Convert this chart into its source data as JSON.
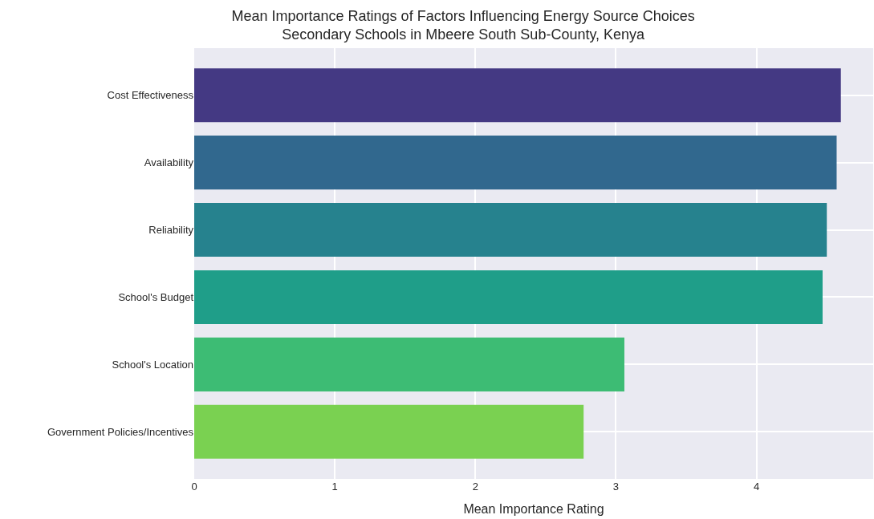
{
  "chart_data": {
    "type": "bar",
    "orientation": "horizontal",
    "title": "Mean Importance Ratings of Factors Influencing Energy Source Choices\nSecondary Schools in Mbeere South Sub-County, Kenya",
    "xlabel": "Mean Importance Rating",
    "categories": [
      "Cost Effectiveness",
      "Availability",
      "Reliability",
      "School's Budget",
      "School's Location",
      "Government Policies/Incentives"
    ],
    "values": [
      4.6,
      4.57,
      4.5,
      4.47,
      3.06,
      2.77
    ],
    "colors": [
      "#443983",
      "#31688e",
      "#26828e",
      "#1f9e89",
      "#3dbc74",
      "#7ad151"
    ],
    "xlim": [
      0,
      4.83
    ],
    "xticks": [
      0,
      1,
      2,
      3,
      4
    ],
    "grid": true
  }
}
